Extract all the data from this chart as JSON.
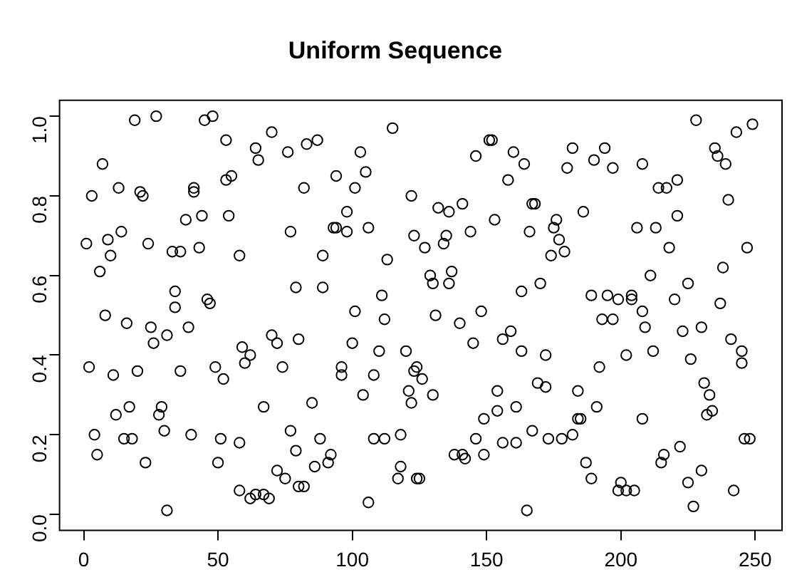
{
  "chart_data": {
    "type": "scatter",
    "title": "Uniform Sequence",
    "marker": "circle",
    "grid": false,
    "legend": false,
    "xlim": [
      -9,
      260
    ],
    "ylim": [
      -0.04,
      1.04
    ],
    "xticks": [
      0,
      50,
      100,
      150,
      200,
      250
    ],
    "yticks": [
      {
        "value": 0,
        "label": "0.0"
      },
      {
        "value": 0.2,
        "label": "0.2"
      },
      {
        "value": 0.4,
        "label": "0.4"
      },
      {
        "value": 0.6,
        "label": "0.6"
      },
      {
        "value": 0.8,
        "label": "0.8"
      },
      {
        "value": 1,
        "label": "1.0"
      }
    ],
    "series": [
      {
        "color": "#000000",
        "x": [
          19,
          27,
          7,
          3,
          13,
          21,
          22,
          1,
          9,
          14,
          10,
          24,
          33,
          6,
          34,
          34,
          8,
          16,
          25,
          26,
          31,
          2,
          11,
          20,
          36,
          17,
          12,
          29,
          28,
          30,
          4,
          5,
          15,
          18,
          23,
          31,
          45,
          48,
          53,
          70,
          64,
          65,
          76,
          41,
          41,
          53,
          55,
          38,
          44,
          54,
          77,
          36,
          43,
          58,
          46,
          47,
          39,
          79,
          59,
          62,
          60,
          70,
          72,
          74,
          80,
          49,
          52,
          67,
          40,
          51,
          58,
          50,
          77,
          79,
          72,
          75,
          58,
          62,
          64,
          67,
          69,
          80,
          115,
          83,
          87,
          103,
          94,
          105,
          101,
          82,
          122,
          98,
          93,
          94,
          98,
          106,
          123,
          89,
          113,
          89,
          111,
          101,
          112,
          100,
          110,
          120,
          96,
          96,
          108,
          104,
          121,
          122,
          123,
          85,
          88,
          92,
          91,
          86,
          108,
          112,
          118,
          118,
          117,
          124,
          82,
          106,
          151,
          152,
          146,
          160,
          164,
          158,
          132,
          136,
          141,
          167,
          153,
          144,
          127,
          134,
          135,
          166,
          129,
          130,
          137,
          136,
          163,
          131,
          140,
          148,
          145,
          156,
          159,
          163,
          124,
          126,
          130,
          154,
          149,
          154,
          161,
          167,
          146,
          156,
          161,
          138,
          141,
          142,
          149,
          125,
          165,
          182,
          194,
          190,
          197,
          180,
          208,
          168,
          186,
          176,
          175,
          177,
          179,
          174,
          206,
          170,
          189,
          195,
          199,
          204,
          204,
          193,
          197,
          208,
          209,
          172,
          192,
          202,
          169,
          172,
          184,
          191,
          208,
          173,
          178,
          182,
          184,
          185,
          187,
          189,
          200,
          199,
          202,
          205,
          228,
          243,
          249,
          235,
          236,
          239,
          214,
          217,
          221,
          240,
          213,
          221,
          218,
          247,
          211,
          225,
          238,
          220,
          237,
          223,
          230,
          212,
          226,
          241,
          245,
          245,
          231,
          233,
          232,
          234,
          246,
          248,
          222,
          216,
          215,
          225,
          230,
          242,
          227
        ],
        "values": [
          0.99,
          1.0,
          0.88,
          0.8,
          0.82,
          0.81,
          0.8,
          0.68,
          0.69,
          0.71,
          0.65,
          0.68,
          0.66,
          0.61,
          0.56,
          0.52,
          0.5,
          0.48,
          0.47,
          0.43,
          0.45,
          0.37,
          0.35,
          0.36,
          0.36,
          0.27,
          0.25,
          0.27,
          0.25,
          0.21,
          0.2,
          0.15,
          0.19,
          0.19,
          0.13,
          0.01,
          0.99,
          1.0,
          0.94,
          0.96,
          0.92,
          0.89,
          0.91,
          0.82,
          0.81,
          0.84,
          0.85,
          0.74,
          0.75,
          0.75,
          0.71,
          0.66,
          0.67,
          0.65,
          0.54,
          0.53,
          0.47,
          0.57,
          0.42,
          0.4,
          0.38,
          0.45,
          0.43,
          0.37,
          0.44,
          0.37,
          0.34,
          0.27,
          0.2,
          0.19,
          0.18,
          0.13,
          0.21,
          0.16,
          0.11,
          0.09,
          0.06,
          0.04,
          0.05,
          0.05,
          0.04,
          0.07,
          0.97,
          0.93,
          0.94,
          0.91,
          0.85,
          0.86,
          0.82,
          0.82,
          0.8,
          0.76,
          0.72,
          0.72,
          0.71,
          0.72,
          0.7,
          0.65,
          0.64,
          0.57,
          0.55,
          0.51,
          0.49,
          0.43,
          0.41,
          0.41,
          0.37,
          0.35,
          0.35,
          0.3,
          0.31,
          0.28,
          0.36,
          0.28,
          0.19,
          0.15,
          0.13,
          0.12,
          0.19,
          0.19,
          0.2,
          0.12,
          0.09,
          0.09,
          0.07,
          0.03,
          0.94,
          0.94,
          0.9,
          0.91,
          0.88,
          0.84,
          0.77,
          0.76,
          0.78,
          0.78,
          0.74,
          0.71,
          0.67,
          0.68,
          0.7,
          0.71,
          0.6,
          0.58,
          0.61,
          0.58,
          0.56,
          0.5,
          0.48,
          0.51,
          0.43,
          0.44,
          0.46,
          0.41,
          0.37,
          0.34,
          0.3,
          0.31,
          0.24,
          0.26,
          0.27,
          0.21,
          0.19,
          0.18,
          0.18,
          0.15,
          0.15,
          0.14,
          0.15,
          0.09,
          0.01,
          0.92,
          0.92,
          0.89,
          0.87,
          0.87,
          0.88,
          0.78,
          0.76,
          0.74,
          0.72,
          0.69,
          0.66,
          0.65,
          0.72,
          0.58,
          0.55,
          0.55,
          0.54,
          0.55,
          0.54,
          0.49,
          0.49,
          0.51,
          0.47,
          0.4,
          0.37,
          0.4,
          0.33,
          0.32,
          0.31,
          0.27,
          0.24,
          0.19,
          0.19,
          0.2,
          0.24,
          0.24,
          0.13,
          0.09,
          0.08,
          0.06,
          0.06,
          0.06,
          0.99,
          0.96,
          0.98,
          0.92,
          0.9,
          0.88,
          0.82,
          0.82,
          0.84,
          0.79,
          0.72,
          0.75,
          0.67,
          0.67,
          0.6,
          0.58,
          0.62,
          0.54,
          0.53,
          0.46,
          0.47,
          0.41,
          0.39,
          0.44,
          0.41,
          0.38,
          0.33,
          0.3,
          0.25,
          0.26,
          0.19,
          0.19,
          0.17,
          0.15,
          0.13,
          0.08,
          0.11,
          0.06,
          0.02
        ]
      }
    ]
  }
}
